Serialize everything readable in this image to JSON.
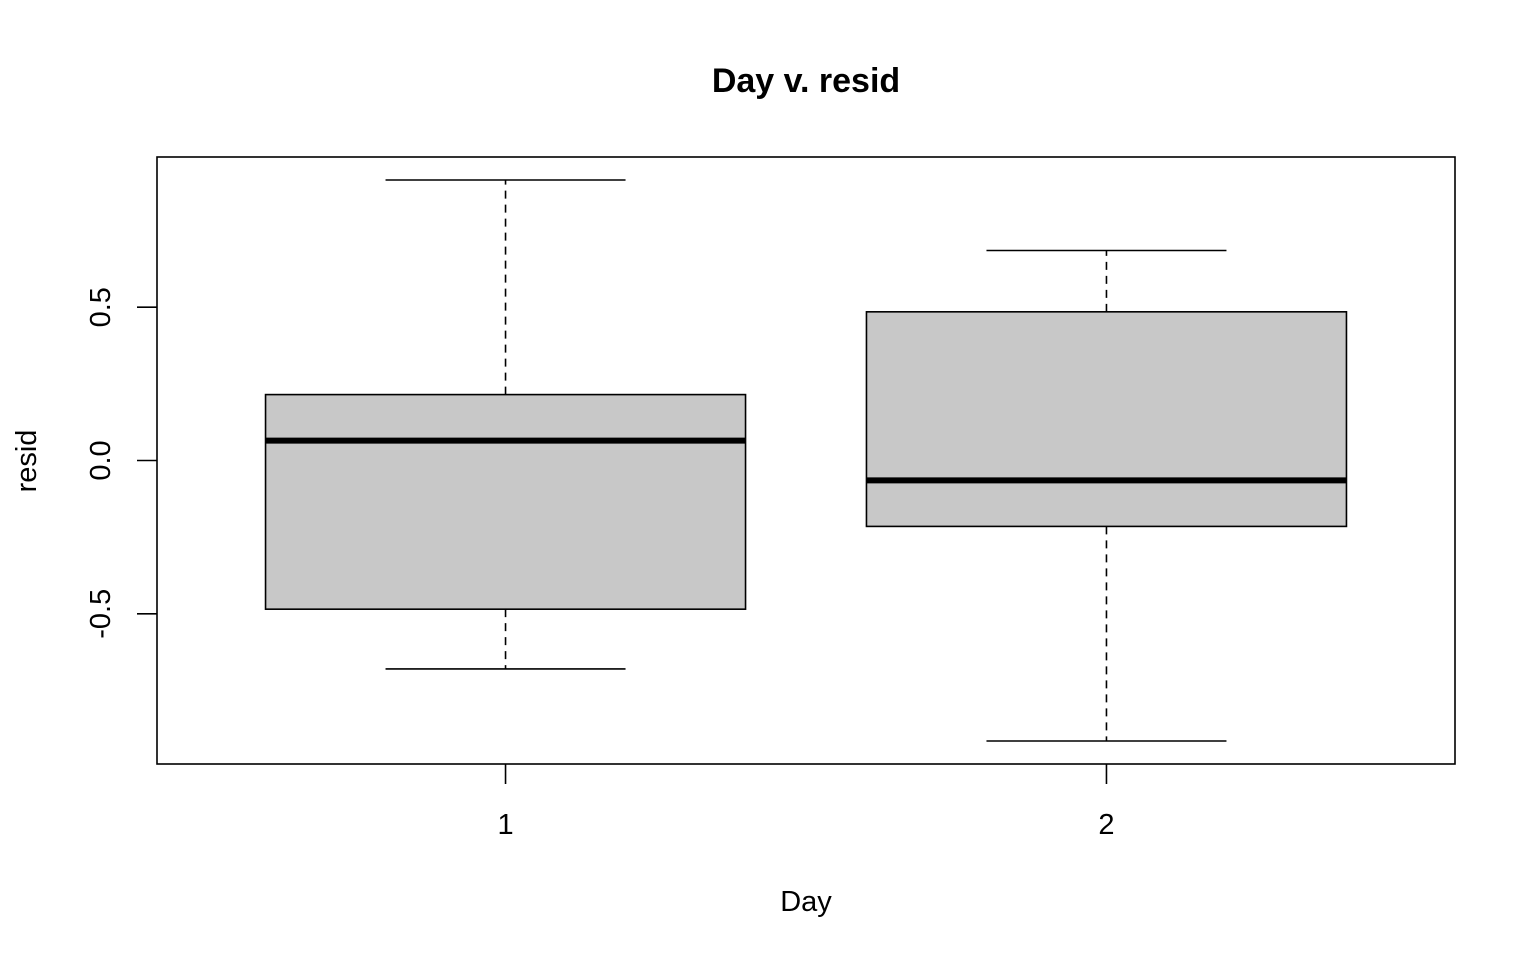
{
  "chart_data": {
    "type": "boxplot",
    "title": "Day v. resid",
    "xlabel": "Day",
    "ylabel": "resid",
    "categories": [
      "1",
      "2"
    ],
    "boxes": [
      {
        "category": "1",
        "whisker_low": -0.68,
        "q1": -0.485,
        "median": 0.065,
        "q3": 0.215,
        "whisker_high": 0.915
      },
      {
        "category": "2",
        "whisker_low": -0.915,
        "q1": -0.215,
        "median": -0.065,
        "q3": 0.485,
        "whisker_high": 0.685
      }
    ],
    "ylim": [
      -0.99,
      0.99
    ],
    "yticks": [
      -0.5,
      0.0,
      0.5
    ],
    "ytick_labels": [
      "-0.5",
      "0.0",
      "0.5"
    ],
    "box_fill": "#c8c8c8",
    "grid": false
  }
}
